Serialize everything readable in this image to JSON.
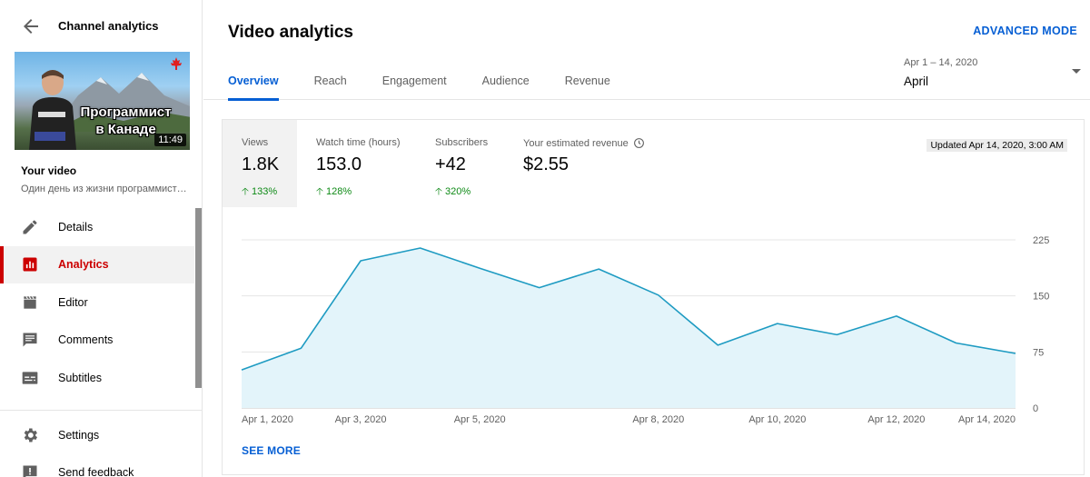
{
  "sidebar": {
    "title": "Channel analytics",
    "thumbnail": {
      "caption_line1": "Программист",
      "caption_line2": "в Канаде",
      "duration": "11:49"
    },
    "your_video_label": "Your video",
    "video_title": "Один день из жизни программиста в Канаде",
    "nav": [
      {
        "label": "Details",
        "icon": "pencil-icon"
      },
      {
        "label": "Analytics",
        "icon": "analytics-icon",
        "active": true
      },
      {
        "label": "Editor",
        "icon": "clapperboard-icon"
      },
      {
        "label": "Comments",
        "icon": "comment-icon"
      },
      {
        "label": "Subtitles",
        "icon": "subtitles-icon"
      }
    ],
    "bottom_nav": [
      {
        "label": "Settings",
        "icon": "gear-icon"
      },
      {
        "label": "Send feedback",
        "icon": "feedback-icon"
      }
    ]
  },
  "header": {
    "title": "Video analytics",
    "advanced_mode": "ADVANCED MODE",
    "tabs": [
      "Overview",
      "Reach",
      "Engagement",
      "Audience",
      "Revenue"
    ],
    "date_range": "Apr 1 – 14, 2020",
    "date_value": "April"
  },
  "metrics": [
    {
      "label": "Views",
      "value": "1.8K",
      "change": "133%"
    },
    {
      "label": "Watch time (hours)",
      "value": "153.0",
      "change": "128%"
    },
    {
      "label": "Subscribers",
      "value": "+42",
      "change": "320%"
    },
    {
      "label": "Your estimated revenue",
      "value": "$2.55",
      "change": ""
    }
  ],
  "updated": "Updated Apr 14, 2020, 3:00 AM",
  "see_more": "SEE MORE",
  "colors": {
    "accent": "#065fd4",
    "active_red": "#cc0000",
    "line": "#1e9bc2",
    "area": "#e3f4fa",
    "positive": "#0e8a16"
  },
  "chart_data": {
    "type": "area",
    "x": [
      "Apr 1, 2020",
      "Apr 2, 2020",
      "Apr 3, 2020",
      "Apr 4, 2020",
      "Apr 5, 2020",
      "Apr 6, 2020",
      "Apr 7, 2020",
      "Apr 8, 2020",
      "Apr 9, 2020",
      "Apr 10, 2020",
      "Apr 11, 2020",
      "Apr 12, 2020",
      "Apr 13, 2020",
      "Apr 14, 2020"
    ],
    "x_tick_labels": [
      "Apr 1, 2020",
      "Apr 3, 2020",
      "Apr 5, 2020",
      "Apr 8, 2020",
      "Apr 10, 2020",
      "Apr 12, 2020",
      "Apr 14, 2020"
    ],
    "series": [
      {
        "values": [
          51,
          80,
          197,
          214,
          187,
          161,
          186,
          151,
          84,
          113,
          98,
          123,
          87,
          73
        ]
      }
    ],
    "y_ticks": [
      0,
      75,
      150,
      225
    ],
    "ylim": [
      0,
      225
    ],
    "grid": true
  }
}
